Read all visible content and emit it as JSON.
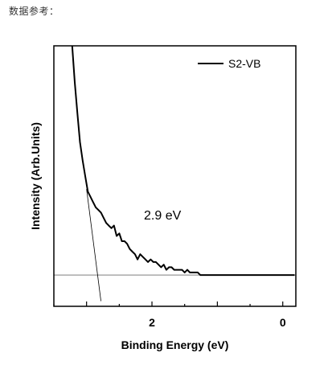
{
  "caption": "数据参考：",
  "chart_data": {
    "type": "line",
    "xlabel": "Binding Energy (eV)",
    "ylabel": "Intensity (Arb.Units)",
    "x_reversed": true,
    "xlim": [
      3.5,
      -0.2
    ],
    "ylim": [
      0,
      1
    ],
    "x_ticks": [
      2,
      0
    ],
    "y_ticks_labeled": false,
    "legend_position": "top-right",
    "annotation": "2.9 eV",
    "series": [
      {
        "name": "S2-VB",
        "color": "#000000",
        "x": [
          3.22,
          3.18,
          3.14,
          3.1,
          3.06,
          3.02,
          2.98,
          2.94,
          2.9,
          2.86,
          2.82,
          2.78,
          2.74,
          2.7,
          2.66,
          2.62,
          2.58,
          2.54,
          2.5,
          2.46,
          2.42,
          2.38,
          2.34,
          2.3,
          2.26,
          2.22,
          2.18,
          2.14,
          2.1,
          2.06,
          2.02,
          1.98,
          1.94,
          1.9,
          1.86,
          1.82,
          1.78,
          1.74,
          1.7,
          1.66,
          1.62,
          1.58,
          1.54,
          1.5,
          1.46,
          1.42,
          1.38,
          1.34,
          1.3,
          1.26,
          1.22,
          1.18,
          1.14,
          1.1,
          1.06,
          1.02,
          0.98,
          0.94,
          0.9,
          0.86,
          0.82,
          0.78,
          0.74,
          0.7,
          0.66,
          0.62,
          0.58,
          0.54,
          0.5,
          0.46,
          0.42,
          0.38,
          0.34,
          0.3,
          0.26,
          0.22,
          0.18,
          0.14,
          0.1,
          0.06,
          0.02,
          -0.02,
          -0.06,
          -0.1,
          -0.14,
          -0.18
        ],
        "y": [
          1.0,
          0.86,
          0.74,
          0.63,
          0.56,
          0.5,
          0.44,
          0.42,
          0.4,
          0.38,
          0.37,
          0.36,
          0.34,
          0.32,
          0.31,
          0.3,
          0.31,
          0.27,
          0.28,
          0.25,
          0.25,
          0.24,
          0.22,
          0.21,
          0.2,
          0.18,
          0.2,
          0.19,
          0.18,
          0.17,
          0.18,
          0.17,
          0.17,
          0.16,
          0.15,
          0.16,
          0.14,
          0.15,
          0.15,
          0.14,
          0.14,
          0.14,
          0.14,
          0.13,
          0.14,
          0.13,
          0.13,
          0.13,
          0.13,
          0.12,
          0.12,
          0.12,
          0.12,
          0.12,
          0.12,
          0.12,
          0.12,
          0.12,
          0.12,
          0.12,
          0.12,
          0.12,
          0.12,
          0.12,
          0.12,
          0.12,
          0.12,
          0.12,
          0.12,
          0.12,
          0.12,
          0.12,
          0.12,
          0.12,
          0.12,
          0.12,
          0.12,
          0.12,
          0.12,
          0.12,
          0.12,
          0.12,
          0.12,
          0.12,
          0.12,
          0.12
        ]
      }
    ],
    "baseline": {
      "y": 0.12,
      "color": "#999999"
    },
    "tangent_line": {
      "x1": 3.0,
      "y1": 0.45,
      "x2": 2.78,
      "y2": 0.02,
      "color": "#000000"
    }
  }
}
